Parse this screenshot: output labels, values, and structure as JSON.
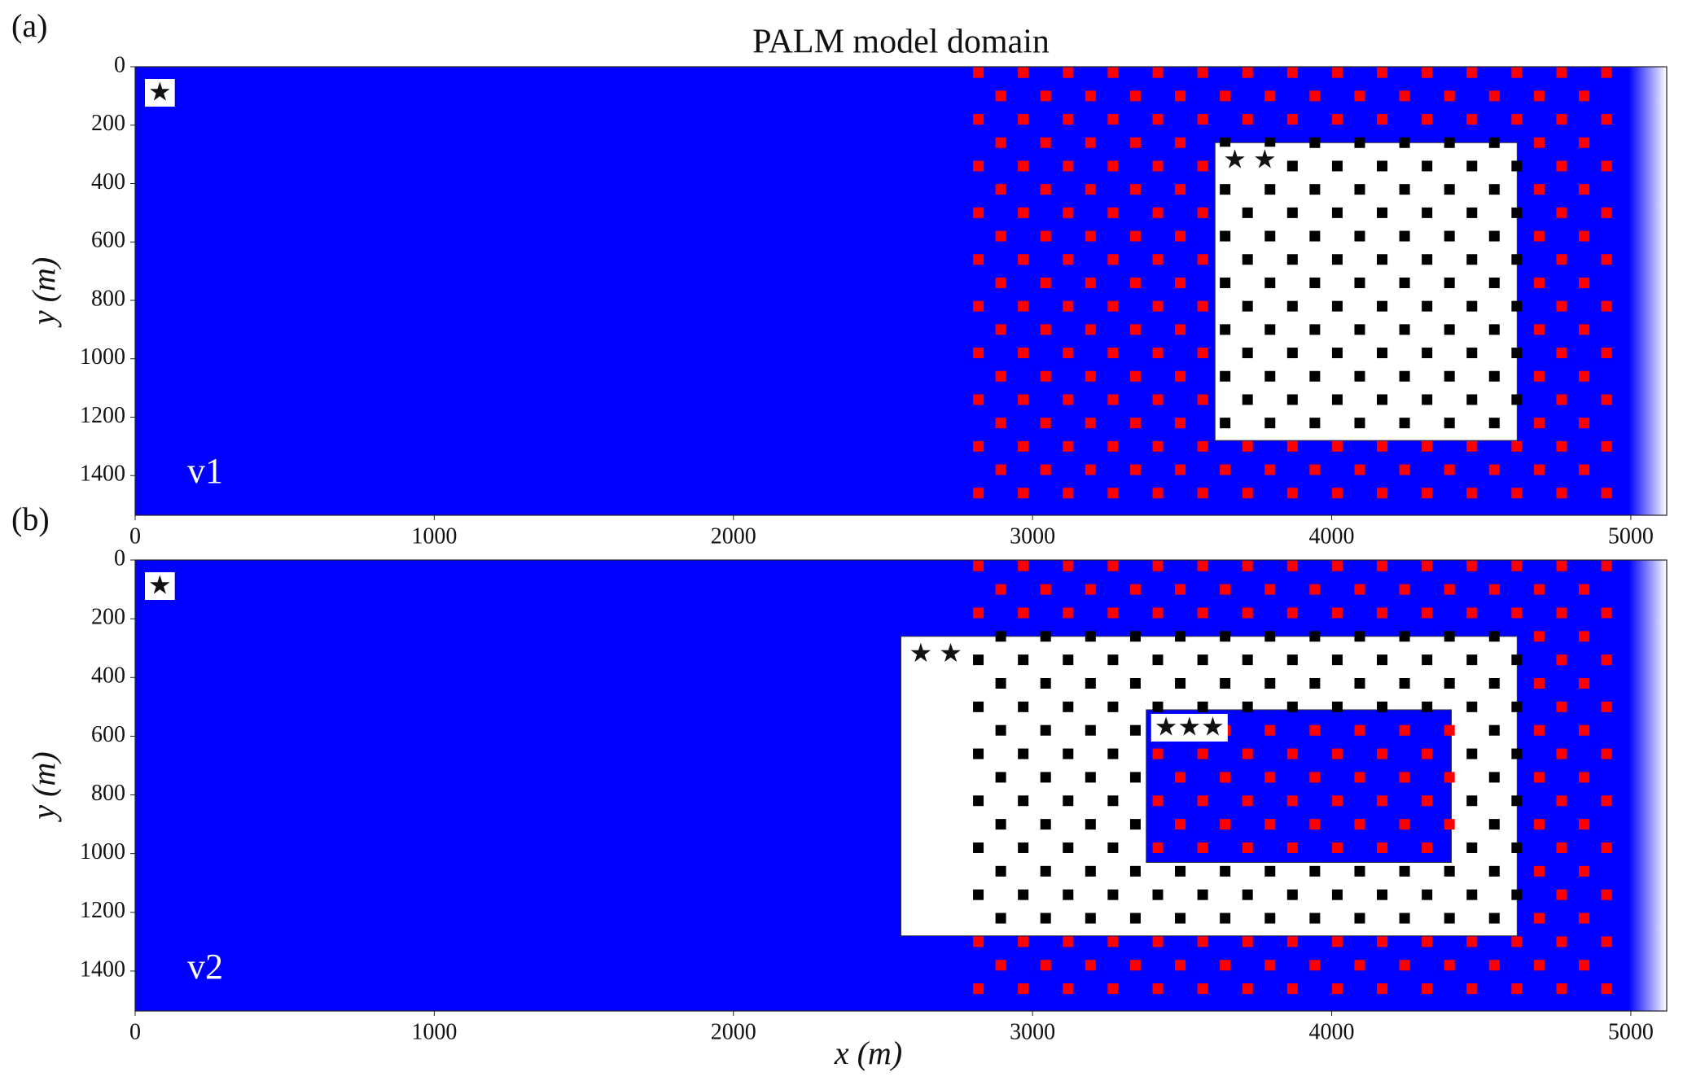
{
  "chart_data": [
    {
      "type": "domain",
      "panel_label": "(a)",
      "title": "PALM model domain",
      "version_label": "v1",
      "ylabel": "y (m)",
      "xlim": [
        0,
        5120
      ],
      "ylim": [
        1536,
        0
      ],
      "xticks": [
        0,
        1000,
        2000,
        3000,
        4000,
        5000
      ],
      "yticks": [
        0,
        200,
        400,
        600,
        800,
        1000,
        1200,
        1400
      ],
      "buildings": {
        "x": [
          2800,
          4950
        ],
        "y": [
          0,
          1536
        ],
        "pitch": [
          150,
          80
        ]
      },
      "regions": [
        {
          "label": "★",
          "x": [
            0,
            5120
          ],
          "y": [
            0,
            1536
          ],
          "color": "#0000ff",
          "building_color": "#ff0000"
        },
        {
          "label": "★ ★",
          "x": [
            3610,
            4620
          ],
          "y": [
            260,
            1280
          ],
          "color": "#ffffff",
          "building_color": "#000000"
        }
      ]
    },
    {
      "type": "domain",
      "panel_label": "(b)",
      "version_label": "v2",
      "ylabel": "y (m)",
      "xlabel": "x (m)",
      "xlim": [
        0,
        5120
      ],
      "ylim": [
        1536,
        0
      ],
      "xticks": [
        0,
        1000,
        2000,
        3000,
        4000,
        5000
      ],
      "yticks": [
        0,
        200,
        400,
        600,
        800,
        1000,
        1200,
        1400
      ],
      "buildings": {
        "x": [
          2800,
          4950
        ],
        "y": [
          0,
          1536
        ],
        "pitch": [
          150,
          80
        ]
      },
      "regions": [
        {
          "label": "★",
          "x": [
            0,
            5120
          ],
          "y": [
            0,
            1536
          ],
          "color": "#0000ff",
          "building_color": "#ff0000"
        },
        {
          "label": "★ ★",
          "x": [
            2560,
            4620
          ],
          "y": [
            260,
            1280
          ],
          "color": "#ffffff",
          "building_color": "#000000"
        },
        {
          "label": "★★★",
          "x": [
            3380,
            4400
          ],
          "y": [
            510,
            1030
          ],
          "color": "#0000ff",
          "building_color": "#ff0000"
        }
      ]
    }
  ]
}
